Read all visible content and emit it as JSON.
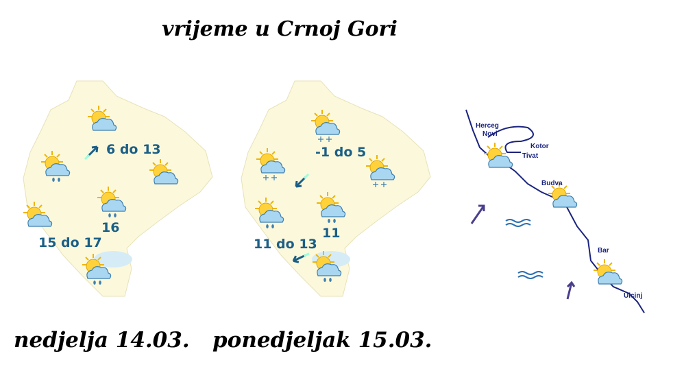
{
  "title": "vrijeme u Crnoj Gori",
  "maps": [
    {
      "labels": [
        "6 do 13",
        "15 do 17",
        "16"
      ]
    },
    {
      "labels": [
        "-1 do 5",
        "11 do 13",
        "11"
      ]
    }
  ],
  "coast": {
    "towns": [
      "Herceg",
      "Novi",
      "Kotor",
      "Tivat",
      "Budva",
      "Bar",
      "Ulcinj"
    ]
  },
  "dates": [
    "nedjelja 14.03.",
    "ponedjeljak 15.03."
  ]
}
